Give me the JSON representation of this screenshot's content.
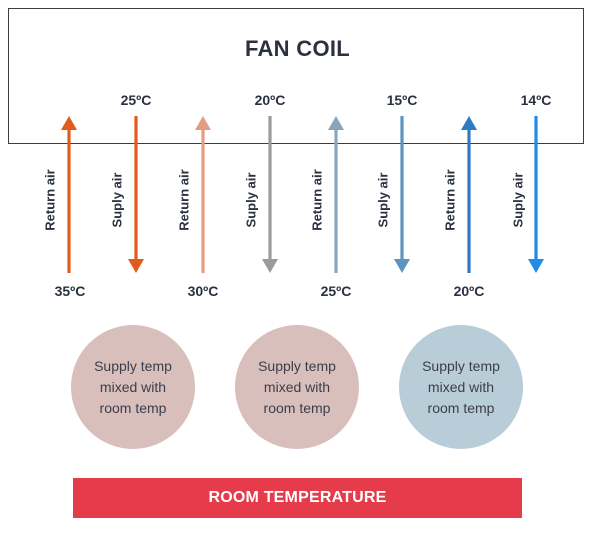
{
  "title": "FAN COIL",
  "supply_temps": [
    "25ºC",
    "20ºC",
    "15ºC",
    "14ºC"
  ],
  "return_temps": [
    "35ºC",
    "30ºC",
    "25ºC",
    "20ºC"
  ],
  "flows": [
    {
      "label": "Return air",
      "direction": "up",
      "color": "#e35a1f"
    },
    {
      "label": "Suply air",
      "direction": "down",
      "color": "#e35a1f"
    },
    {
      "label": "Return air",
      "direction": "up",
      "color": "#e39e82"
    },
    {
      "label": "Suply air",
      "direction": "down",
      "color": "#9b9b9b"
    },
    {
      "label": "Return air",
      "direction": "up",
      "color": "#8aa6bd"
    },
    {
      "label": "Suply air",
      "direction": "down",
      "color": "#5b93c2"
    },
    {
      "label": "Return air",
      "direction": "up",
      "color": "#2f7ac4"
    },
    {
      "label": "Suply air",
      "direction": "down",
      "color": "#1f8de6"
    }
  ],
  "circles": [
    {
      "lines": [
        "Supply temp",
        "mixed with",
        "room temp"
      ],
      "color": "#d9bfbc"
    },
    {
      "lines": [
        "Supply temp",
        "mixed with",
        "room temp"
      ],
      "color": "#d9bfbc"
    },
    {
      "lines": [
        "Supply temp",
        "mixed with",
        "room temp"
      ],
      "color": "#b9cdd8"
    }
  ],
  "room_bar": {
    "label": "ROOM TEMPERATURE",
    "color": "#e63b4a"
  }
}
